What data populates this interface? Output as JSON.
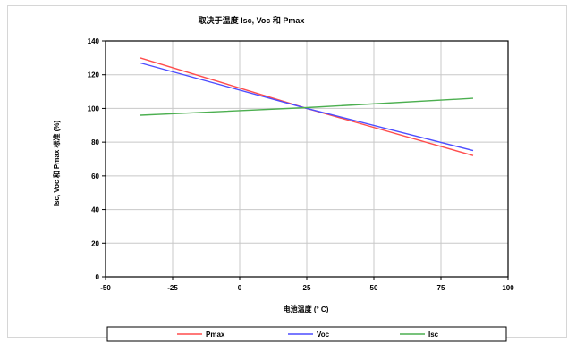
{
  "chart_data": {
    "type": "line",
    "title": "取决于温度 Isc, Voc 和 Pmax",
    "xlabel": "电池温度 (° C)",
    "ylabel": "Isc, Voc 和 Pmax 标准 (%)",
    "xlim": [
      -50,
      100
    ],
    "ylim": [
      0,
      140
    ],
    "xticks": [
      -50,
      -25,
      0,
      25,
      50,
      75,
      100
    ],
    "yticks": [
      0,
      20,
      40,
      60,
      80,
      100,
      120,
      140
    ],
    "grid": true,
    "legend_position": "bottom",
    "series": [
      {
        "name": "Pmax",
        "color": "#ff4d4d",
        "x": [
          -37,
          25,
          87
        ],
        "y": [
          130,
          100,
          72
        ]
      },
      {
        "name": "Voc",
        "color": "#4d4dff",
        "x": [
          -37,
          25,
          87
        ],
        "y": [
          127,
          100,
          75
        ]
      },
      {
        "name": "Isc",
        "color": "#4caf50",
        "x": [
          -37,
          25,
          87
        ],
        "y": [
          96,
          100.5,
          106
        ]
      }
    ]
  }
}
